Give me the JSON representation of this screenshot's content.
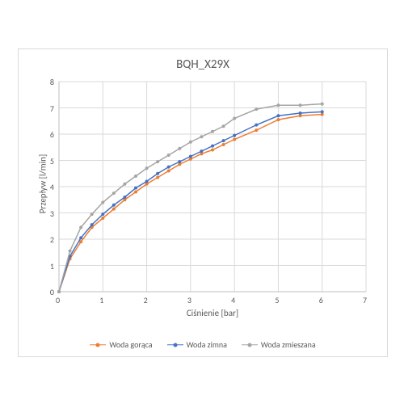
{
  "chart": {
    "type": "line",
    "title": "BQH_X29X",
    "title_fontsize": 15,
    "xlabel": "Ciśnienie [bar]",
    "ylabel": "Przepływ [l/min]",
    "label_fontsize": 11,
    "tick_fontsize": 10,
    "background_color": "#ffffff",
    "border_color": "#d9d9d9",
    "grid_color": "#d9d9d9",
    "axis_text_color": "#595959",
    "xlim": [
      0,
      7
    ],
    "ylim": [
      0,
      8
    ],
    "xtick_step": 1,
    "ytick_step": 1,
    "marker_size": 4,
    "line_width": 1.5,
    "x": [
      0,
      0.25,
      0.5,
      0.75,
      1,
      1.25,
      1.5,
      1.75,
      2,
      2.25,
      2.5,
      2.75,
      3,
      3.25,
      3.5,
      3.75,
      4,
      4.5,
      5,
      5.5,
      6
    ],
    "series": [
      {
        "name": "Woda gorąca",
        "color": "#ed7d31",
        "marker": "circle",
        "y": [
          0,
          1.25,
          1.9,
          2.45,
          2.8,
          3.15,
          3.5,
          3.8,
          4.1,
          4.35,
          4.6,
          4.85,
          5.05,
          5.25,
          5.4,
          5.6,
          5.8,
          6.15,
          6.55,
          6.7,
          6.75
        ]
      },
      {
        "name": "Woda zimna",
        "color": "#4472c4",
        "marker": "circle",
        "y": [
          0,
          1.35,
          2.05,
          2.55,
          2.95,
          3.3,
          3.6,
          3.95,
          4.2,
          4.5,
          4.75,
          4.95,
          5.15,
          5.35,
          5.55,
          5.75,
          5.95,
          6.35,
          6.7,
          6.8,
          6.85
        ]
      },
      {
        "name": "Woda zmieszana",
        "color": "#a5a5a5",
        "marker": "circle",
        "y": [
          0,
          1.55,
          2.45,
          2.95,
          3.4,
          3.75,
          4.1,
          4.4,
          4.7,
          4.95,
          5.2,
          5.45,
          5.7,
          5.9,
          6.1,
          6.3,
          6.6,
          6.95,
          7.1,
          7.1,
          7.15
        ]
      }
    ],
    "legend_position": "bottom"
  }
}
